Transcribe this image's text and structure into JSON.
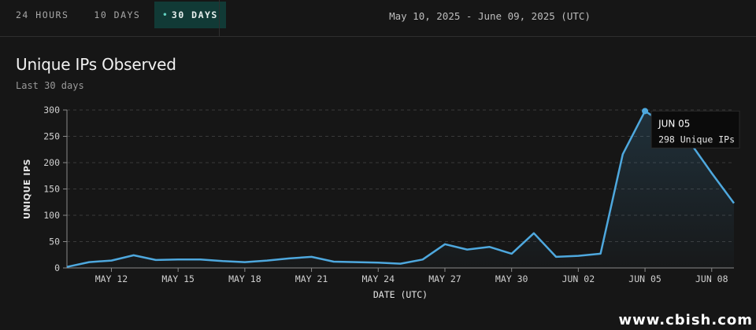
{
  "tabs": [
    {
      "label": "24 HOURS",
      "active": false
    },
    {
      "label": "10 DAYS",
      "active": false
    },
    {
      "label": "30 DAYS",
      "active": true
    }
  ],
  "active_dot": "•",
  "date_range": "May 10, 2025 - June 09, 2025 (UTC)",
  "panel": {
    "title": "Unique IPs Observed",
    "subtitle": "Last 30 days"
  },
  "tooltip": {
    "date": "JUN 05",
    "value_text": "298 Unique IPs"
  },
  "watermark": "www.cbish.com",
  "colors": {
    "background": "#161616",
    "line": "#4ea8de",
    "active_tab_bg": "#113a36",
    "active_dot": "#62d1c0",
    "grid": "#3a3a3a",
    "tooltip_bg": "#0b0b0b"
  },
  "chart_data": {
    "type": "area",
    "xlabel": "DATE (UTC)",
    "ylabel": "UNIQUE IPS",
    "ylim": [
      0,
      300
    ],
    "yticks": [
      0,
      50,
      100,
      150,
      200,
      250,
      300
    ],
    "grid": "horizontal dashed",
    "xtick_labels": [
      {
        "index": 2,
        "label": "MAY 12"
      },
      {
        "index": 5,
        "label": "MAY 15"
      },
      {
        "index": 8,
        "label": "MAY 18"
      },
      {
        "index": 11,
        "label": "MAY 21"
      },
      {
        "index": 14,
        "label": "MAY 24"
      },
      {
        "index": 17,
        "label": "MAY 27"
      },
      {
        "index": 20,
        "label": "MAY 30"
      },
      {
        "index": 23,
        "label": "JUN 02"
      },
      {
        "index": 26,
        "label": "JUN 05"
      },
      {
        "index": 29,
        "label": "JUN 08"
      }
    ],
    "series": [
      {
        "values": [
          2,
          11,
          14,
          24,
          15,
          16,
          16,
          13,
          11,
          14,
          18,
          21,
          12,
          11,
          10,
          8,
          16,
          45,
          35,
          40,
          27,
          66,
          21,
          23,
          27,
          216,
          298,
          270,
          240,
          180,
          123
        ]
      }
    ],
    "highlight_index": 26
  }
}
